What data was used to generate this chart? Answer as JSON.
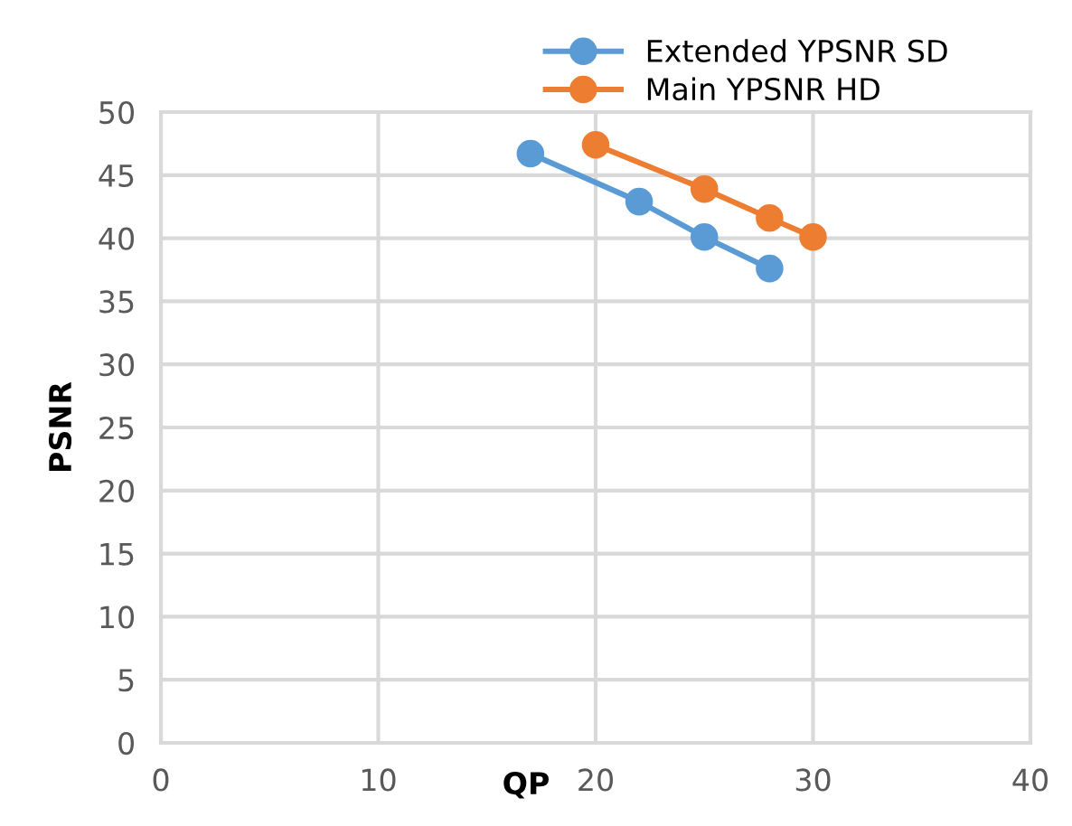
{
  "chart_data": {
    "type": "line",
    "xlabel": "QP",
    "ylabel": "PSNR",
    "xlim": [
      0,
      40
    ],
    "xticks": [
      0,
      10,
      20,
      30,
      40
    ],
    "ylim": [
      0,
      50
    ],
    "yticks": [
      0,
      5,
      10,
      15,
      20,
      25,
      30,
      35,
      40,
      45,
      50
    ],
    "grid": true,
    "legend": "top right",
    "marker": "circle",
    "line_style": "solid",
    "series": [
      {
        "name": "Extended YPSNR SD",
        "color": "#5b9bd5",
        "x": [
          17,
          22,
          25,
          28
        ],
        "values": [
          46.7,
          42.9,
          40.1,
          37.6
        ]
      },
      {
        "name": "Main YPSNR HD",
        "color": "#ed7d31",
        "x": [
          20,
          25,
          28,
          30
        ],
        "values": [
          47.4,
          43.9,
          41.6,
          40.1
        ]
      }
    ]
  }
}
